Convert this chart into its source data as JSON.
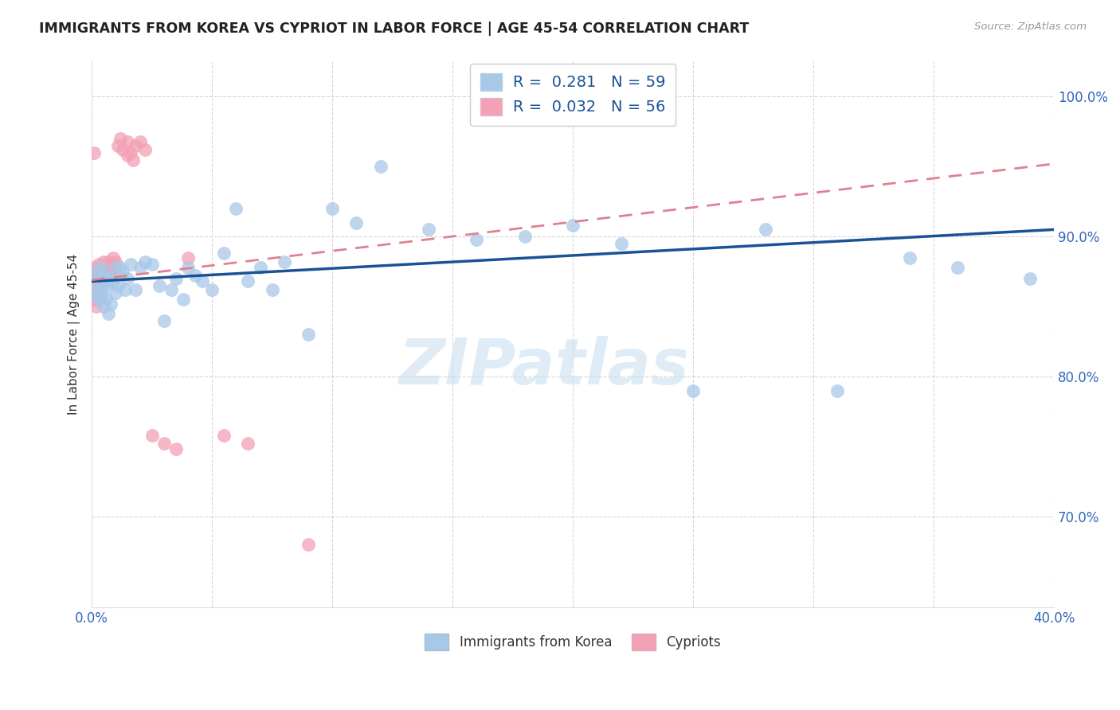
{
  "title": "IMMIGRANTS FROM KOREA VS CYPRIOT IN LABOR FORCE | AGE 45-54 CORRELATION CHART",
  "source": "Source: ZipAtlas.com",
  "ylabel": "In Labor Force | Age 45-54",
  "xlim": [
    0.0,
    0.4
  ],
  "ylim": [
    0.635,
    1.025
  ],
  "xtick_positions": [
    0.0,
    0.05,
    0.1,
    0.15,
    0.2,
    0.25,
    0.3,
    0.35,
    0.4
  ],
  "xticklabels": [
    "0.0%",
    "",
    "",
    "",
    "",
    "",
    "",
    "",
    "40.0%"
  ],
  "ytick_positions": [
    0.7,
    0.8,
    0.9,
    1.0
  ],
  "yticklabels": [
    "70.0%",
    "80.0%",
    "90.0%",
    "100.0%"
  ],
  "korea_R": 0.281,
  "korea_N": 59,
  "cypriot_R": 0.032,
  "cypriot_N": 56,
  "korea_color": "#a8c8e8",
  "cypriot_color": "#f4a0b5",
  "korea_line_color": "#1a5296",
  "cypriot_line_color": "#e08090",
  "legend_label_korea": "Immigrants from Korea",
  "legend_label_cypriot": "Cypriots",
  "watermark": "ZIPatlas",
  "korea_line_x0": 0.0,
  "korea_line_y0": 0.868,
  "korea_line_x1": 0.4,
  "korea_line_y1": 0.905,
  "cypriot_line_x0": 0.0,
  "cypriot_line_y0": 0.869,
  "cypriot_line_x1": 0.4,
  "cypriot_line_y1": 0.952,
  "korea_x": [
    0.001,
    0.002,
    0.002,
    0.003,
    0.003,
    0.003,
    0.004,
    0.004,
    0.005,
    0.005,
    0.005,
    0.006,
    0.006,
    0.007,
    0.007,
    0.008,
    0.009,
    0.01,
    0.01,
    0.011,
    0.012,
    0.013,
    0.014,
    0.015,
    0.016,
    0.018,
    0.02,
    0.022,
    0.025,
    0.028,
    0.03,
    0.033,
    0.035,
    0.038,
    0.04,
    0.043,
    0.046,
    0.05,
    0.055,
    0.06,
    0.065,
    0.07,
    0.075,
    0.08,
    0.09,
    0.1,
    0.11,
    0.12,
    0.14,
    0.16,
    0.18,
    0.2,
    0.22,
    0.25,
    0.28,
    0.31,
    0.34,
    0.36,
    0.39
  ],
  "korea_y": [
    0.868,
    0.86,
    0.875,
    0.858,
    0.87,
    0.855,
    0.862,
    0.878,
    0.866,
    0.872,
    0.85,
    0.856,
    0.865,
    0.87,
    0.845,
    0.852,
    0.868,
    0.878,
    0.86,
    0.865,
    0.878,
    0.875,
    0.862,
    0.87,
    0.88,
    0.862,
    0.878,
    0.882,
    0.88,
    0.865,
    0.84,
    0.862,
    0.87,
    0.855,
    0.878,
    0.872,
    0.868,
    0.862,
    0.888,
    0.92,
    0.868,
    0.878,
    0.862,
    0.882,
    0.83,
    0.92,
    0.91,
    0.95,
    0.905,
    0.898,
    0.9,
    0.908,
    0.895,
    0.79,
    0.905,
    0.79,
    0.885,
    0.878,
    0.87
  ],
  "cypriot_x": [
    0.001,
    0.001,
    0.001,
    0.001,
    0.001,
    0.001,
    0.001,
    0.001,
    0.002,
    0.002,
    0.002,
    0.002,
    0.002,
    0.002,
    0.002,
    0.003,
    0.003,
    0.003,
    0.003,
    0.003,
    0.003,
    0.003,
    0.004,
    0.004,
    0.004,
    0.004,
    0.005,
    0.005,
    0.005,
    0.006,
    0.006,
    0.007,
    0.007,
    0.008,
    0.008,
    0.009,
    0.01,
    0.01,
    0.011,
    0.012,
    0.013,
    0.015,
    0.015,
    0.016,
    0.017,
    0.018,
    0.02,
    0.022,
    0.025,
    0.03,
    0.035,
    0.04,
    0.055,
    0.065,
    0.09,
    0.001
  ],
  "cypriot_y": [
    0.87,
    0.875,
    0.878,
    0.865,
    0.862,
    0.858,
    0.872,
    0.855,
    0.875,
    0.87,
    0.865,
    0.86,
    0.855,
    0.868,
    0.85,
    0.88,
    0.875,
    0.87,
    0.865,
    0.86,
    0.855,
    0.862,
    0.878,
    0.872,
    0.865,
    0.858,
    0.882,
    0.875,
    0.87,
    0.878,
    0.872,
    0.882,
    0.875,
    0.88,
    0.872,
    0.885,
    0.882,
    0.875,
    0.965,
    0.97,
    0.962,
    0.958,
    0.968,
    0.96,
    0.955,
    0.965,
    0.968,
    0.962,
    0.758,
    0.752,
    0.748,
    0.885,
    0.758,
    0.752,
    0.68,
    0.96
  ]
}
